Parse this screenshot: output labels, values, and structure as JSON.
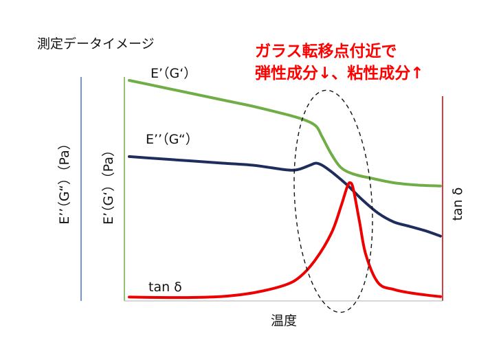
{
  "chart_data": {
    "type": "line",
    "title": "測定データイメージ",
    "annotation": {
      "line1": "ガラス転移点付近で",
      "line2": "弾性成分↓、粘性成分↑",
      "color": "#ff0000"
    },
    "xlabel": "温度",
    "ylabel_left_outer": "E’’（G“）（Pa）",
    "ylabel_left_inner": "E’（G‘）（Pa）",
    "ylabel_right": "tan δ",
    "xlim": [
      0,
      100
    ],
    "ylim": [
      0,
      100
    ],
    "axis_colors": {
      "outer_left": "#4472c4",
      "inner_left": "#70ad47",
      "right": "#c00000",
      "bottom": "#bfbfbf"
    },
    "series": [
      {
        "name": "E’（G‘）",
        "color": "#70ad47",
        "x": [
          0,
          10,
          20,
          30,
          40,
          50,
          56,
          60,
          62,
          65,
          68,
          72,
          78,
          85,
          92,
          100
        ],
        "y": [
          100,
          97,
          94,
          91,
          88,
          84.5,
          82,
          79,
          74,
          66,
          60,
          57,
          55,
          53,
          52,
          51.5
        ]
      },
      {
        "name": "E’’（G“）",
        "color": "#1f2d5c",
        "x": [
          0,
          10,
          20,
          30,
          40,
          50,
          54,
          58,
          60,
          62,
          65,
          70,
          75,
          80,
          85,
          90,
          95,
          100
        ],
        "y": [
          65,
          64,
          63,
          62,
          61,
          59,
          59,
          61,
          62,
          61,
          58,
          52,
          45,
          39,
          35,
          33,
          31,
          28.5
        ]
      },
      {
        "name": "tan δ",
        "color": "#ee0000",
        "x": [
          0,
          10,
          20,
          30,
          40,
          50,
          55,
          60,
          65,
          68,
          70,
          71,
          72,
          74,
          76,
          80,
          85,
          90,
          95,
          100
        ],
        "y": [
          0.5,
          0.3,
          0.3,
          0.8,
          2.5,
          6,
          10,
          18,
          30,
          42,
          51,
          53,
          50,
          35,
          20,
          7,
          4,
          2.5,
          1.5,
          0.7
        ]
      }
    ]
  }
}
